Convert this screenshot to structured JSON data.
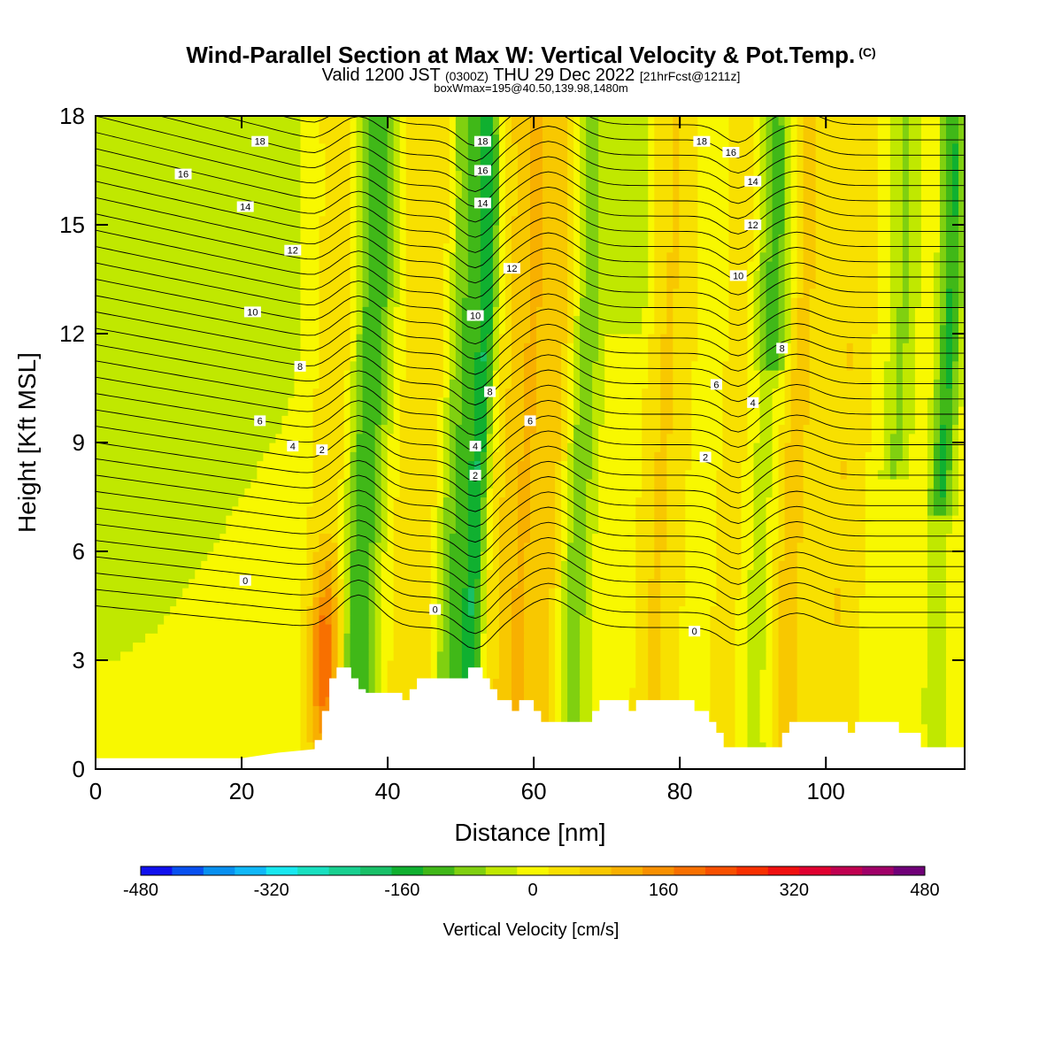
{
  "title": {
    "main": "Wind-Parallel Section at Max W: Vertical Velocity & Pot.Temp.",
    "copyright_tag": "(C)",
    "valid_prefix": "Valid 1200 JST",
    "valid_utc": "(0300Z)",
    "valid_date": "THU 29 Dec 2022",
    "forecast": "[21hrFcst@1211z]",
    "box_info": "boxWmax=195@40.50,139.98,1480m"
  },
  "chart_data": {
    "type": "heatmap",
    "title": "Wind-Parallel Section at Max W: Vertical Velocity & Pot.Temp.",
    "xlabel": "Distance [nm]",
    "ylabel": "Height [Kft MSL]",
    "xlim": [
      0,
      119
    ],
    "ylim": [
      0,
      18
    ],
    "x_ticks": [
      0,
      20,
      40,
      60,
      80,
      100
    ],
    "x_tick_labels": [
      "0",
      "20",
      "40",
      "60",
      "80",
      "100"
    ],
    "y_ticks": [
      0,
      3,
      6,
      9,
      12,
      15,
      18
    ],
    "y_tick_labels": [
      "0",
      "3",
      "6",
      "9",
      "12",
      "15",
      "18"
    ],
    "colorbar": {
      "label": "Vertical Velocity [cm/s]",
      "min": -480,
      "max": 480,
      "step": 40,
      "tick_values": [
        -480,
        -320,
        -160,
        0,
        160,
        320,
        480
      ],
      "tick_labels": [
        "-480",
        "-320",
        "-160",
        "0",
        "160",
        "320",
        "480"
      ],
      "colors": [
        "#1010ee",
        "#0850f0",
        "#0890f0",
        "#10b8f8",
        "#18e8f0",
        "#18e0c0",
        "#18d090",
        "#18c068",
        "#10b030",
        "#40b818",
        "#80d010",
        "#c0e800",
        "#f8f800",
        "#f8e000",
        "#f8c800",
        "#f8b000",
        "#f89000",
        "#f87000",
        "#f85000",
        "#f83000",
        "#f01010",
        "#e00030",
        "#c00050",
        "#a00068",
        "#700078"
      ]
    },
    "terrain_kft": [
      [
        0,
        0.3
      ],
      [
        6,
        0.3
      ],
      [
        10,
        0.3
      ],
      [
        20,
        0.3
      ],
      [
        25,
        0.45
      ],
      [
        30,
        0.55
      ],
      [
        30,
        0.8
      ],
      [
        31,
        0.8
      ],
      [
        31,
        1.6
      ],
      [
        32,
        1.6
      ],
      [
        32,
        2.5
      ],
      [
        33,
        2.5
      ],
      [
        33,
        2.8
      ],
      [
        35,
        2.8
      ],
      [
        35,
        2.5
      ],
      [
        36,
        2.5
      ],
      [
        36,
        2.2
      ],
      [
        37,
        2.2
      ],
      [
        37,
        2.1
      ],
      [
        42,
        2.1
      ],
      [
        42,
        1.9
      ],
      [
        43,
        1.9
      ],
      [
        43,
        2.2
      ],
      [
        44,
        2.2
      ],
      [
        44,
        2.5
      ],
      [
        51,
        2.5
      ],
      [
        51,
        2.8
      ],
      [
        53,
        2.8
      ],
      [
        53,
        2.5
      ],
      [
        54,
        2.5
      ],
      [
        54,
        2.2
      ],
      [
        55,
        2.2
      ],
      [
        55,
        1.9
      ],
      [
        57,
        1.9
      ],
      [
        57,
        1.6
      ],
      [
        58,
        1.6
      ],
      [
        58,
        1.9
      ],
      [
        60,
        1.9
      ],
      [
        60,
        1.6
      ],
      [
        61,
        1.6
      ],
      [
        61,
        1.3
      ],
      [
        68,
        1.3
      ],
      [
        68,
        1.6
      ],
      [
        69,
        1.6
      ],
      [
        69,
        1.9
      ],
      [
        73,
        1.9
      ],
      [
        73,
        1.6
      ],
      [
        74,
        1.6
      ],
      [
        74,
        1.9
      ],
      [
        82,
        1.9
      ],
      [
        82,
        1.6
      ],
      [
        84,
        1.6
      ],
      [
        84,
        1.3
      ],
      [
        85,
        1.3
      ],
      [
        85,
        1.0
      ],
      [
        86,
        1.0
      ],
      [
        86,
        0.6
      ],
      [
        94,
        0.6
      ],
      [
        94,
        1.0
      ],
      [
        95,
        1.0
      ],
      [
        95,
        1.3
      ],
      [
        103,
        1.3
      ],
      [
        103,
        1.0
      ],
      [
        104,
        1.0
      ],
      [
        104,
        1.3
      ],
      [
        110,
        1.3
      ],
      [
        110,
        1.0
      ],
      [
        113,
        1.0
      ],
      [
        113,
        0.6
      ],
      [
        119,
        0.6
      ]
    ],
    "theta_contours": {
      "levels": [
        0,
        2,
        4,
        6,
        8,
        10,
        12,
        14,
        16,
        18
      ],
      "labels_shown": [
        {
          "label": "18",
          "x": 22.5,
          "y": 17.3
        },
        {
          "label": "16",
          "x": 12,
          "y": 16.4
        },
        {
          "label": "14",
          "x": 20.5,
          "y": 15.5
        },
        {
          "label": "12",
          "x": 27,
          "y": 14.3
        },
        {
          "label": "10",
          "x": 21.5,
          "y": 12.6
        },
        {
          "label": "8",
          "x": 28,
          "y": 11.1
        },
        {
          "label": "6",
          "x": 22.5,
          "y": 9.6
        },
        {
          "label": "4",
          "x": 27,
          "y": 8.9
        },
        {
          "label": "2",
          "x": 31,
          "y": 8.8
        },
        {
          "label": "0",
          "x": 20.5,
          "y": 5.2
        },
        {
          "label": "18",
          "x": 53,
          "y": 17.3
        },
        {
          "label": "16",
          "x": 53,
          "y": 16.5
        },
        {
          "label": "14",
          "x": 53,
          "y": 15.6
        },
        {
          "label": "12",
          "x": 57,
          "y": 13.8
        },
        {
          "label": "10",
          "x": 52,
          "y": 12.5
        },
        {
          "label": "8",
          "x": 54,
          "y": 10.4
        },
        {
          "label": "6",
          "x": 59.5,
          "y": 9.6
        },
        {
          "label": "4",
          "x": 52,
          "y": 8.9
        },
        {
          "label": "2",
          "x": 52,
          "y": 8.1
        },
        {
          "label": "0",
          "x": 46.5,
          "y": 4.4
        },
        {
          "label": "18",
          "x": 83,
          "y": 17.3
        },
        {
          "label": "16",
          "x": 87,
          "y": 17.0
        },
        {
          "label": "14",
          "x": 90,
          "y": 16.2
        },
        {
          "label": "12",
          "x": 90,
          "y": 15.0
        },
        {
          "label": "10",
          "x": 88,
          "y": 13.6
        },
        {
          "label": "8",
          "x": 94,
          "y": 11.6
        },
        {
          "label": "6",
          "x": 85,
          "y": 10.6
        },
        {
          "label": "4",
          "x": 90,
          "y": 10.1
        },
        {
          "label": "2",
          "x": 83.5,
          "y": 8.6
        },
        {
          "label": "0",
          "x": 82,
          "y": 3.8
        }
      ]
    }
  }
}
